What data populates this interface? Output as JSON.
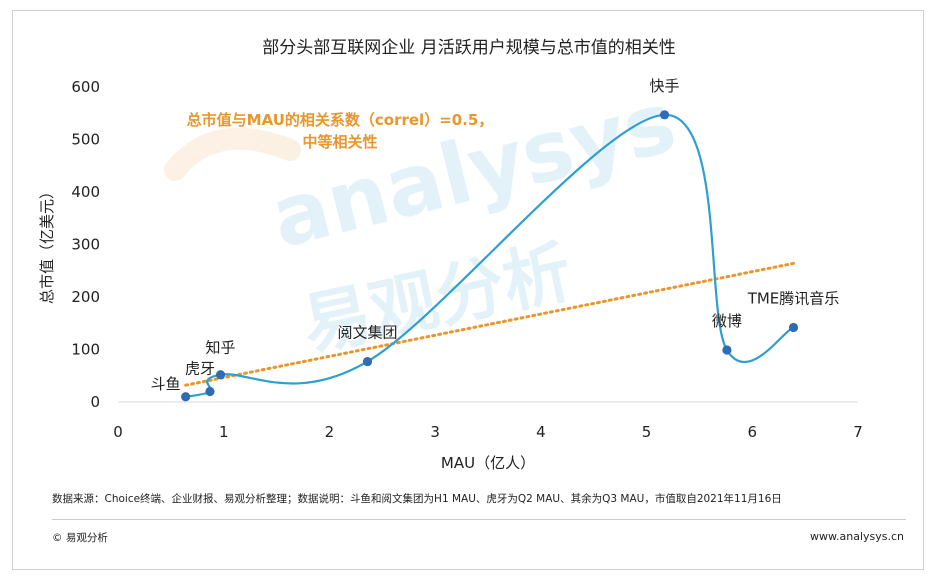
{
  "chart_data": {
    "type": "scatter",
    "title": "部分头部互联网企业  月活跃用户规模与总市值的相关性",
    "xlabel": "MAU（亿人）",
    "ylabel": "总市值（亿美元）",
    "xlim": [
      0,
      7
    ],
    "ylim": [
      0,
      600
    ],
    "xticks": [
      "0",
      "1",
      "2",
      "3",
      "4",
      "5",
      "6",
      "7"
    ],
    "yticks": [
      "0",
      "100",
      "200",
      "300",
      "400",
      "500",
      "600"
    ],
    "grid": false,
    "points": [
      {
        "label": "斗鱼",
        "x": 0.64,
        "y": 10
      },
      {
        "label": "虎牙",
        "x": 0.87,
        "y": 20
      },
      {
        "label": "知乎",
        "x": 0.97,
        "y": 52
      },
      {
        "label": "阅文集团",
        "x": 2.36,
        "y": 77
      },
      {
        "label": "快手",
        "x": 5.17,
        "y": 547
      },
      {
        "label": "微博",
        "x": 5.76,
        "y": 99
      },
      {
        "label": "TME腾讯音乐",
        "x": 6.39,
        "y": 142
      }
    ],
    "trendline": {
      "x": [
        0.64,
        6.39
      ],
      "y": [
        32,
        264
      ]
    },
    "annotation": {
      "line1": "总市值与MAU的相关系数（correl）=0.5，",
      "line2": "中等相关性"
    },
    "colors": {
      "series": "#2E9FD0",
      "points": "#2E6DB5",
      "trendline": "#E8962D",
      "annotation": "#E8962D"
    }
  },
  "watermark": {
    "latin": "analysys",
    "cjk": "易观分析"
  },
  "footer": {
    "source": "数据来源：Choice终端、企业财报、易观分析整理；数据说明：斗鱼和阅文集团为H1 MAU、虎牙为Q2 MAU、其余为Q3 MAU，市值取自2021年11月16日",
    "copyright": "© 易观分析",
    "website": "www.analysys.cn"
  }
}
